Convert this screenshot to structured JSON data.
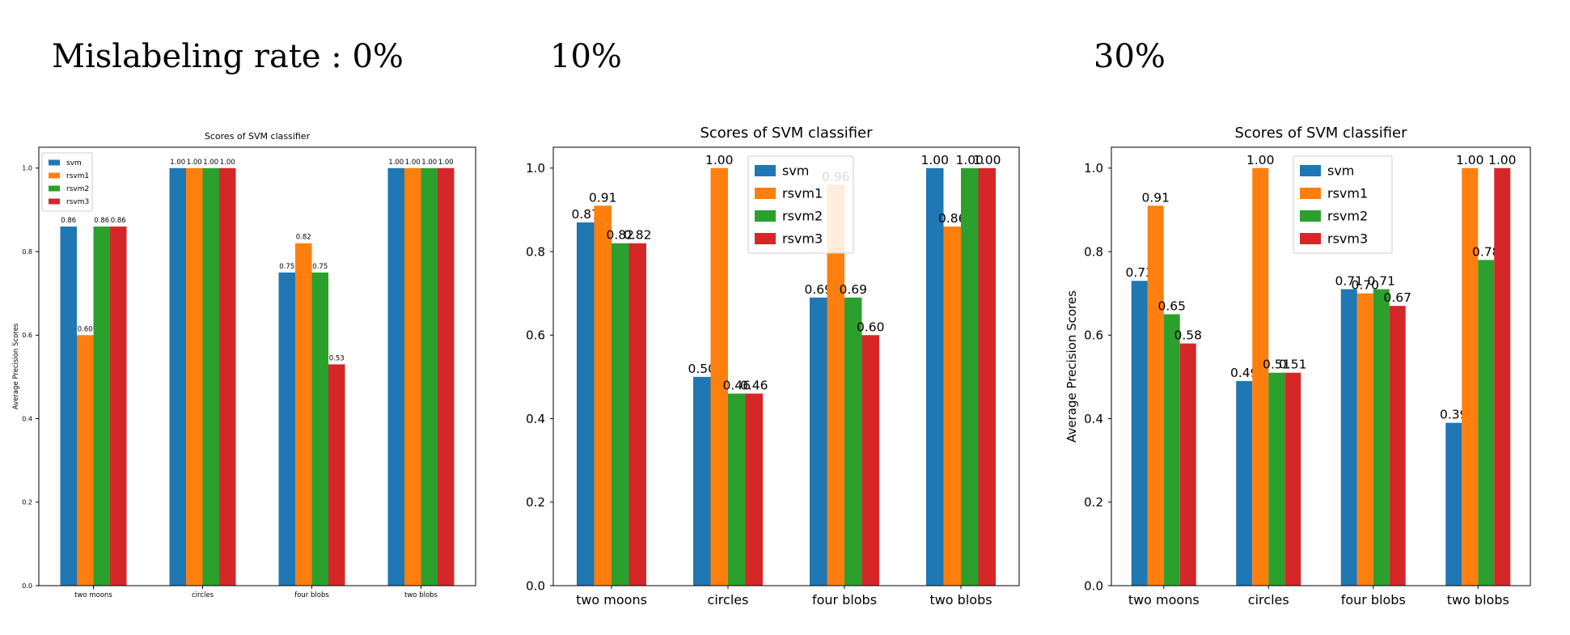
{
  "headings": [
    "Mislabeling rate : 0%",
    "10%",
    "30%"
  ],
  "colors": {
    "svm": "#1f77b4",
    "rsvm1": "#ff7f0e",
    "rsvm2": "#2ca02c",
    "rsvm3": "#d62728"
  },
  "chart_data": [
    {
      "type": "bar",
      "title": "Scores of SVM classifier",
      "xlabel": "",
      "ylabel": "Average Precision Scores",
      "ylim": [
        0,
        1.05
      ],
      "yticks": [
        "0.0",
        "0.2",
        "0.4",
        "0.6",
        "0.8",
        "1.0"
      ],
      "categories": [
        "two moons",
        "circles",
        "four blobs",
        "two blobs"
      ],
      "legend": "top-left",
      "series": [
        {
          "name": "svm",
          "values": [
            0.86,
            1.0,
            0.75,
            1.0
          ],
          "labels": [
            "0.86",
            "1.00",
            "0.75",
            "1.00"
          ]
        },
        {
          "name": "rsvm1",
          "values": [
            0.6,
            1.0,
            0.82,
            1.0
          ],
          "labels": [
            "0.60",
            "1.00",
            "0.82",
            "1.00"
          ]
        },
        {
          "name": "rsvm2",
          "values": [
            0.86,
            1.0,
            0.75,
            1.0
          ],
          "labels": [
            "0.86",
            "1.00",
            "0.75",
            "1.00"
          ]
        },
        {
          "name": "rsvm3",
          "values": [
            0.86,
            1.0,
            0.53,
            1.0
          ],
          "labels": [
            "0.86",
            "1.00",
            "0.53",
            "1.00"
          ]
        }
      ]
    },
    {
      "type": "bar",
      "title": "Scores of SVM classifier",
      "xlabel": "",
      "ylabel": "",
      "ylim": [
        0,
        1.05
      ],
      "yticks": [
        "0.0",
        "0.2",
        "0.4",
        "0.6",
        "0.8",
        "1.0"
      ],
      "categories": [
        "two moons",
        "circles",
        "four blobs",
        "two blobs"
      ],
      "legend": "top-center",
      "series": [
        {
          "name": "svm",
          "values": [
            0.87,
            0.5,
            0.69,
            1.0
          ],
          "labels": [
            "0.87",
            "0.50",
            "0.69",
            "1.00"
          ]
        },
        {
          "name": "rsvm1",
          "values": [
            0.91,
            1.0,
            0.96,
            0.86
          ],
          "labels": [
            "0.91",
            "1.00",
            "0.96",
            "0.86"
          ]
        },
        {
          "name": "rsvm2",
          "values": [
            0.82,
            0.46,
            0.69,
            1.0
          ],
          "labels": [
            "0.82",
            "0.46",
            "0.69",
            "1.00"
          ]
        },
        {
          "name": "rsvm3",
          "values": [
            0.82,
            0.46,
            0.6,
            1.0
          ],
          "labels": [
            "0.82",
            "0.46",
            "0.60",
            "1.00"
          ]
        }
      ]
    },
    {
      "type": "bar",
      "title": "Scores of SVM classifier",
      "xlabel": "",
      "ylabel": "Average Precision Scores",
      "ylim": [
        0,
        1.05
      ],
      "yticks": [
        "0.0",
        "0.2",
        "0.4",
        "0.6",
        "0.8",
        "1.0"
      ],
      "categories": [
        "two moons",
        "circles",
        "four blobs",
        "two blobs"
      ],
      "legend": "top-center",
      "series": [
        {
          "name": "svm",
          "values": [
            0.73,
            0.49,
            0.71,
            0.39
          ],
          "labels": [
            "0.73",
            "0.49",
            "0.71",
            "0.39"
          ]
        },
        {
          "name": "rsvm1",
          "values": [
            0.91,
            1.0,
            0.7,
            1.0
          ],
          "labels": [
            "0.91",
            "1.00",
            "0.70",
            "1.00"
          ]
        },
        {
          "name": "rsvm2",
          "values": [
            0.65,
            0.51,
            0.71,
            0.78
          ],
          "labels": [
            "0.65",
            "0.51",
            "0.71",
            "0.78"
          ]
        },
        {
          "name": "rsvm3",
          "values": [
            0.58,
            0.51,
            0.67,
            1.0
          ],
          "labels": [
            "0.58",
            "0.51",
            "0.67",
            "1.00"
          ]
        }
      ]
    }
  ]
}
